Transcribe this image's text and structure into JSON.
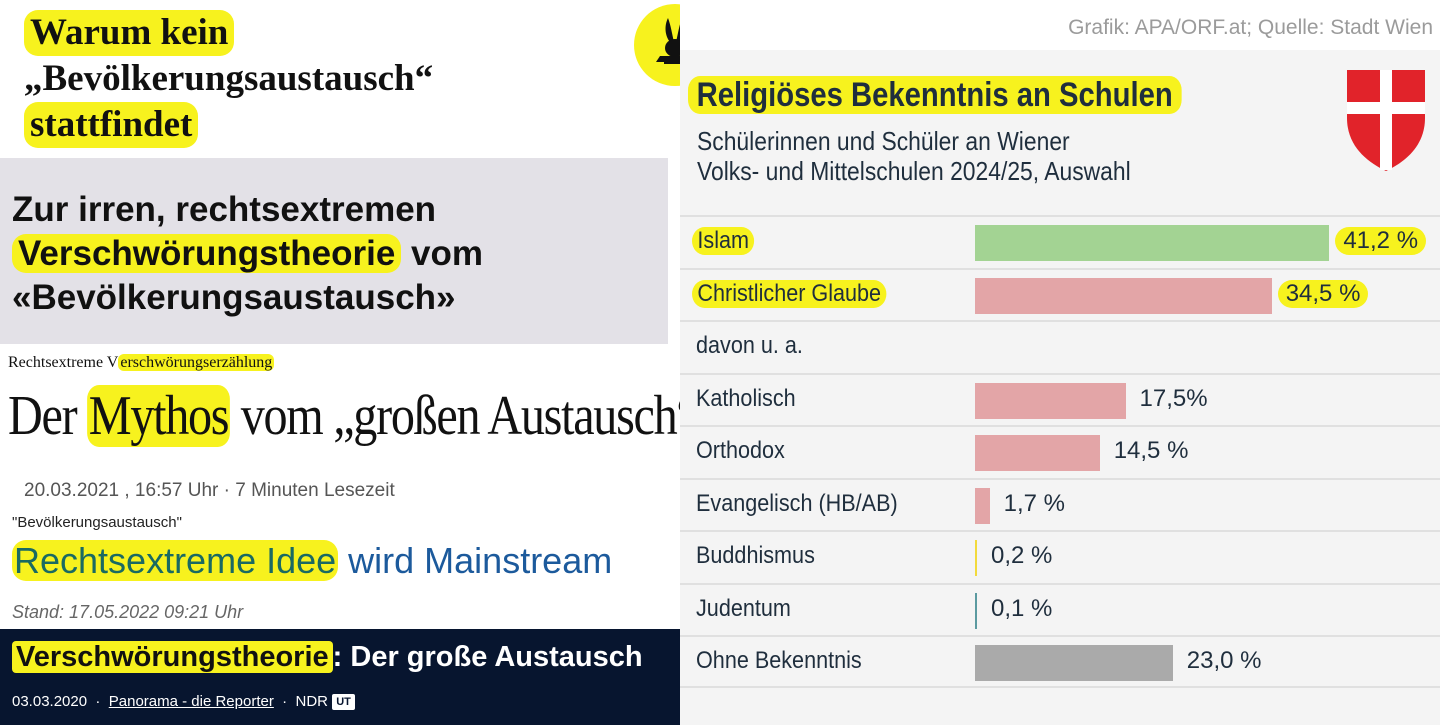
{
  "left": {
    "card1": {
      "line1": "Warum kein",
      "line2": "„Bevölkerungsaustausch“",
      "line3": "stattfindet"
    },
    "card2": {
      "line1": "Zur irren, rechtsextremen",
      "line2_hl": "Verschwörungstheorie",
      "line2_rest": " vom",
      "line3": "«Bevölkerungsaustausch»"
    },
    "card3": {
      "kicker_plain": "Rechtsextreme V",
      "kicker_hl": "erschwörungserzählung",
      "title_a": "Der ",
      "title_hl": "Mythos",
      "title_b": " vom „großen Austausch“",
      "date": "20.03.2021 , 16:57 Uhr · 7 Minuten Lesezeit",
      "kicker2": "\"Bevölkerungsaustausch\"",
      "headline_hl": "Rechtsextreme Idee",
      "headline_rest": " wird Mainstream",
      "stand": "Stand: 17.05.2022 09:21 Uhr"
    },
    "card4": {
      "title_hl": "Verschwörungstheorie",
      "title_rest": ": Der große Austausch",
      "date": "03.03.2020",
      "show": "Panorama - die Reporter",
      "station": "NDR",
      "badge": "UT"
    }
  },
  "right": {
    "source": "Grafik: APA/ORF.at; Quelle: Stadt Wien"
  },
  "chart_data": {
    "type": "bar",
    "title": "Religiöses Bekenntnis an Schulen",
    "subtitle_line1": "Schülerinnen und Schüler an Wiener",
    "subtitle_line2": "Volks- und Mittelschulen 2024/25, Auswahl",
    "colors": {
      "green": "#a3d393",
      "red": "#e3a5a7",
      "yellow": "#f2da3c",
      "teal": "#5b9aa0",
      "grey": "#aaaaaa"
    },
    "rows": [
      {
        "label": "Islam",
        "value": 41.2,
        "value_label": "41,2 %",
        "color": "green",
        "highlight": true
      },
      {
        "label": "Christlicher Glaube",
        "value": 34.5,
        "value_label": "34,5 %",
        "color": "red",
        "highlight": true
      },
      {
        "label": "davon u. a.",
        "value": null,
        "value_label": "",
        "color": "",
        "highlight": false
      },
      {
        "label": "Katholisch",
        "value": 17.5,
        "value_label": "17,5%",
        "color": "red",
        "highlight": false
      },
      {
        "label": "Orthodox",
        "value": 14.5,
        "value_label": "14,5 %",
        "color": "red",
        "highlight": false
      },
      {
        "label": "Evangelisch (HB/AB)",
        "value": 1.7,
        "value_label": "1,7 %",
        "color": "red",
        "highlight": false
      },
      {
        "label": "Buddhismus",
        "value": 0.2,
        "value_label": "0,2 %",
        "color": "yellow",
        "highlight": false
      },
      {
        "label": "Judentum",
        "value": 0.1,
        "value_label": "0,1 %",
        "color": "teal",
        "highlight": false
      },
      {
        "label": "Ohne Bekenntnis",
        "value": 23.0,
        "value_label": "23,0 %",
        "color": "grey",
        "highlight": false
      }
    ]
  }
}
